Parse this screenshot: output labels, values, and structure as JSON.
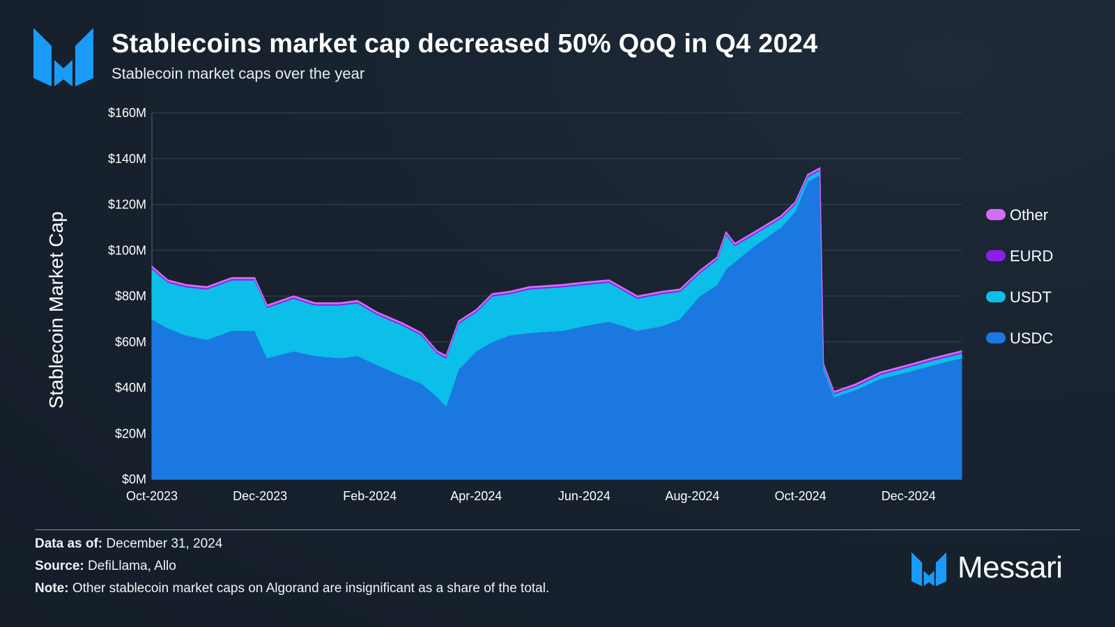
{
  "header": {
    "title": "Stablecoins market cap decreased 50% QoQ in Q4 2024",
    "subtitle": "Stablecoin market caps over the year"
  },
  "brand": {
    "name": "Messari",
    "accent": "#1a9bfa"
  },
  "footer": {
    "data_as_of_label": "Data as of:",
    "data_as_of_value": " December 31, 2024",
    "source_label": "Source:",
    "source_value": " DefiLlama, Allo",
    "note_label": "Note:",
    "note_value": " Other stablecoin market caps on Algorand are insignificant as a share of the total."
  },
  "chart_data": {
    "type": "area",
    "stacked": true,
    "ylabel": "Stablecoin Market Cap",
    "ylim": [
      0,
      160
    ],
    "yticks": [
      0,
      20,
      40,
      60,
      80,
      100,
      120,
      140,
      160
    ],
    "ytick_labels": [
      "$0M",
      "$20M",
      "$40M",
      "$60M",
      "$80M",
      "$100M",
      "$120M",
      "$140M",
      "$160M"
    ],
    "x_range": [
      "2023-10-01",
      "2024-12-31"
    ],
    "xticks": [
      "2023-10-01",
      "2023-12-01",
      "2024-02-01",
      "2024-04-01",
      "2024-06-01",
      "2024-08-01",
      "2024-10-01",
      "2024-12-01"
    ],
    "xtick_labels": [
      "Oct-2023",
      "Dec-2023",
      "Feb-2024",
      "Apr-2024",
      "Jun-2024",
      "Aug-2024",
      "Oct-2024",
      "Dec-2024"
    ],
    "grid": true,
    "legend_position": "right",
    "x": [
      "2023-10-01",
      "2023-10-10",
      "2023-10-20",
      "2023-11-01",
      "2023-11-15",
      "2023-11-28",
      "2023-12-05",
      "2023-12-20",
      "2024-01-01",
      "2024-01-15",
      "2024-01-25",
      "2024-02-05",
      "2024-02-20",
      "2024-03-01",
      "2024-03-10",
      "2024-03-15",
      "2024-03-22",
      "2024-04-01",
      "2024-04-10",
      "2024-04-20",
      "2024-05-01",
      "2024-05-20",
      "2024-06-01",
      "2024-06-15",
      "2024-07-01",
      "2024-07-15",
      "2024-07-25",
      "2024-08-05",
      "2024-08-15",
      "2024-08-20",
      "2024-08-25",
      "2024-09-05",
      "2024-09-20",
      "2024-09-28",
      "2024-10-05",
      "2024-10-12",
      "2024-10-14",
      "2024-10-20",
      "2024-11-01",
      "2024-11-15",
      "2024-12-01",
      "2024-12-15",
      "2024-12-31"
    ],
    "series": [
      {
        "name": "USDC",
        "color": "#1b78e0",
        "values": [
          70,
          66,
          63,
          61,
          65,
          65,
          53,
          56,
          54,
          53,
          54,
          50,
          45,
          42,
          36,
          32,
          48,
          56,
          60,
          63,
          64,
          65,
          67,
          69,
          65,
          67,
          70,
          80,
          85,
          92,
          95,
          102,
          110,
          117,
          130,
          133,
          48,
          36,
          39,
          44,
          47,
          50,
          53
        ]
      },
      {
        "name": "USDT",
        "color": "#0bbfe8",
        "values": [
          22,
          20,
          21,
          22,
          22,
          22,
          22,
          23,
          22,
          23,
          23,
          22,
          22,
          21,
          19,
          21,
          20,
          17,
          20,
          18,
          19,
          19,
          18,
          17,
          14,
          14,
          12,
          10,
          11,
          15,
          7,
          5,
          4,
          3,
          2,
          2,
          1.5,
          1.3,
          1.5,
          1.7,
          2,
          2,
          2
        ]
      },
      {
        "name": "EURD",
        "color": "#8b1fe6",
        "values": [
          0.6,
          0.6,
          0.6,
          0.6,
          0.6,
          0.6,
          0.6,
          0.6,
          0.6,
          0.6,
          0.6,
          0.6,
          0.6,
          0.6,
          0.6,
          0.6,
          0.6,
          0.6,
          0.6,
          0.6,
          0.6,
          0.6,
          0.6,
          0.6,
          0.6,
          0.6,
          0.6,
          0.6,
          0.6,
          0.6,
          0.6,
          0.6,
          0.6,
          0.6,
          0.6,
          0.6,
          0.6,
          0.6,
          0.6,
          0.6,
          0.6,
          0.6,
          0.6
        ]
      },
      {
        "name": "Other",
        "color": "#d56cf5",
        "values": [
          0.5,
          0.5,
          0.5,
          0.5,
          0.5,
          0.5,
          0.5,
          0.5,
          0.5,
          0.5,
          0.5,
          0.5,
          0.5,
          0.5,
          0.5,
          0.5,
          0.5,
          0.5,
          0.5,
          0.5,
          0.5,
          0.5,
          0.5,
          0.5,
          0.5,
          0.5,
          0.5,
          0.5,
          0.5,
          0.5,
          0.5,
          0.5,
          0.5,
          0.5,
          0.5,
          0.5,
          0.5,
          0.5,
          0.5,
          0.5,
          0.5,
          0.5,
          0.5
        ]
      }
    ],
    "legend_order": [
      "Other",
      "EURD",
      "USDT",
      "USDC"
    ]
  }
}
